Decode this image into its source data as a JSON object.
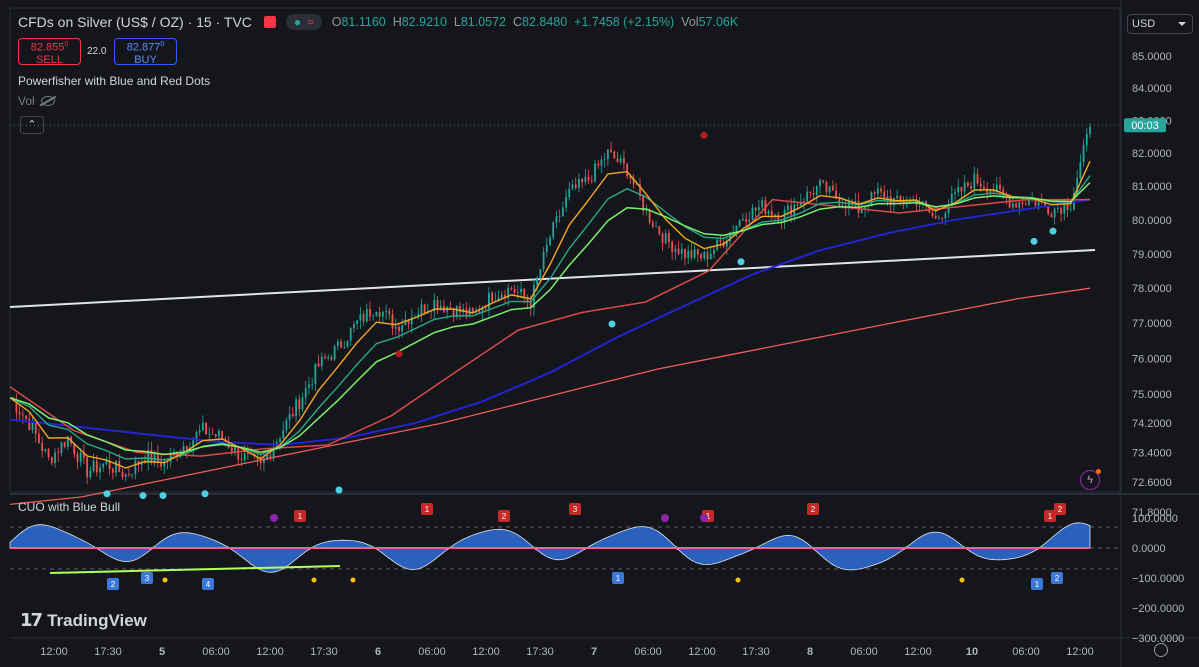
{
  "header": {
    "title": "CFDs on Silver (US$ / OZ) · 15 · TVC",
    "open_label": "O",
    "open": "81.1160",
    "high_label": "H",
    "high": "82.9210",
    "low_label": "L",
    "low": "81.0572",
    "close_label": "C",
    "close": "82.8480",
    "change": "+1.7458 (+2.15%)",
    "vol_label": "Vol",
    "vol": "57.06K",
    "pill_icon_1": "●",
    "pill_icon_2": "≈"
  },
  "trade": {
    "sell_price": "82.855",
    "sell_price_sup": "0",
    "sell_label": "SELL",
    "spread": "22.0",
    "buy_price": "82.877",
    "buy_price_sup": "0",
    "buy_label": "BUY"
  },
  "indicators": {
    "main": "Powerfisher with Blue and Red Dots",
    "vol": "Vol",
    "cuo": "CUO with Blue Bull"
  },
  "currency": "USD",
  "countdown": "00:03",
  "logo_text": "TradingView",
  "colors": {
    "background": "#14161c",
    "up": "#26a69a",
    "down": "#ef5350",
    "ma_blue": "#2323d2",
    "ma_red": "#f05a5a",
    "ma_orange": "#f5a623",
    "ma_green": "#7cf06c",
    "ma_teal": "#2aa889",
    "osc_fill": "#2f6fd8"
  },
  "chart_data": [
    {
      "type": "line",
      "subtype": "candlestick with moving averages",
      "x_ticks": [
        "12:00",
        "17:30",
        "5",
        "06:00",
        "12:00",
        "17:30",
        "6",
        "06:00",
        "12:00",
        "17:30",
        "7",
        "06:00",
        "12:00",
        "17:30",
        "8",
        "06:00",
        "12:00",
        "10",
        "06:00",
        "12:00"
      ],
      "y_ticks": [
        "85.0000",
        "84.0000",
        "83.0000",
        "82.0000",
        "81.0000",
        "80.0000",
        "79.0000",
        "78.0000",
        "77.0000",
        "76.0000",
        "75.0000",
        "74.2000",
        "73.4000",
        "72.6000",
        "71.8000"
      ],
      "y_scale": "log",
      "ylim": [
        71.5,
        85.6
      ],
      "price_path": [
        74.9,
        74.2,
        73.2,
        73.8,
        72.9,
        73.1,
        72.8,
        73.3,
        73.1,
        73.6,
        74.0,
        73.8,
        73.3,
        73.0,
        73.9,
        74.8,
        75.8,
        76.3,
        77.0,
        77.5,
        76.9,
        77.3,
        77.6,
        77.4,
        77.2,
        77.8,
        78.0,
        77.6,
        79.5,
        80.8,
        81.2,
        82.0,
        81.5,
        80.2,
        79.4,
        79.0,
        78.9,
        79.4,
        80.1,
        80.4,
        80.1,
        80.6,
        81.0,
        80.6,
        80.3,
        80.8,
        80.5,
        80.6,
        80.0,
        80.7,
        81.2,
        80.9,
        80.5,
        80.6,
        80.3,
        80.5,
        82.8
      ],
      "series": [
        {
          "values": [
            72.0,
            72.2,
            72.6,
            73.0,
            73.4,
            73.8,
            74.2,
            74.7,
            75.2,
            75.7,
            76.1,
            76.5,
            76.9,
            77.3,
            77.7,
            78.0
          ]
        },
        {
          "values": [
            74.3,
            74.1,
            73.9,
            73.7,
            73.6,
            73.8,
            74.2,
            74.8,
            75.6,
            76.6,
            77.5,
            78.4,
            79.1,
            79.6,
            80.0,
            80.3,
            80.6
          ]
        },
        {
          "values": [
            75.2,
            74.0,
            73.4,
            73.3,
            73.5,
            73.6,
            74.4,
            75.6,
            76.8,
            77.3,
            77.6,
            78.5,
            80.6,
            80.4,
            80.2,
            80.4,
            80.6,
            80.6
          ]
        }
      ],
      "markers": {
        "blue_dots": [
          72.5,
          72.45,
          72.45,
          72.5,
          72.6,
          77.2,
          79.0,
          79.6,
          79.9
        ],
        "red_dots": [
          75.9,
          82.3
        ]
      },
      "annotations": [
        "trendline"
      ],
      "last_price": 82.85
    },
    {
      "type": "area",
      "subtype": "oscillator",
      "y_ticks": [
        "100.0000",
        "0.0000",
        "−100.0000",
        "−200.0000",
        "−300.0000"
      ],
      "ylim": [
        -310,
        135
      ],
      "reference_lines": [
        70,
        0,
        -70
      ],
      "labels_top": [
        "1",
        "1",
        "2",
        "3",
        "1",
        "2",
        "1",
        "2"
      ],
      "labels_bottom": [
        "2",
        "3",
        "4",
        "1",
        "1",
        "2"
      ]
    }
  ]
}
